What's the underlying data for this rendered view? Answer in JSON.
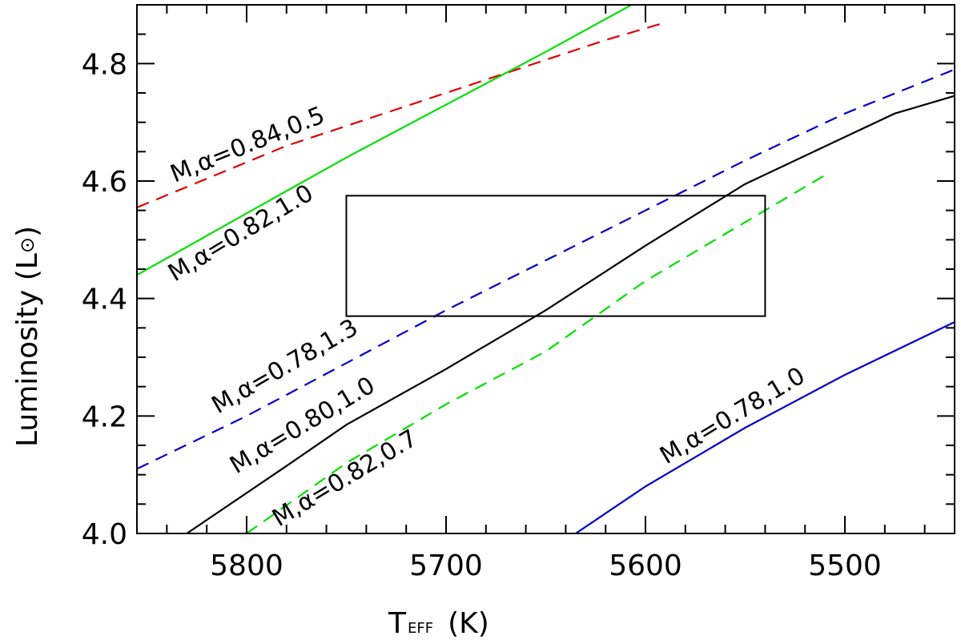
{
  "chart_data": {
    "type": "line",
    "xlabel": "T",
    "xlabel_sub": "EFF",
    "xlabel_unit": "(K)",
    "ylabel": "Luminosity (L",
    "ylabel_sun": "⊙",
    "ylabel_close": ")",
    "xlim": [
      5855,
      5445
    ],
    "ylim": [
      4.0,
      4.9
    ],
    "x_reversed": true,
    "xticks": [
      5800,
      5700,
      5600,
      5500
    ],
    "xtick_labels": [
      "5800",
      "5700",
      "5600",
      "5500"
    ],
    "yticks": [
      4.0,
      4.2,
      4.4,
      4.6,
      4.8
    ],
    "ytick_labels": [
      "4.0",
      "4.2",
      "4.4",
      "4.6",
      "4.8"
    ],
    "grid": false,
    "box": {
      "x": [
        5750,
        5540
      ],
      "y": [
        4.37,
        4.575
      ]
    },
    "series": [
      {
        "label": "M,α=0.84,0.5",
        "color": "#e00000",
        "dash": true,
        "x": [
          5855,
          5780,
          5700,
          5620,
          5590
        ],
        "y": [
          4.555,
          4.66,
          4.75,
          4.84,
          4.87
        ]
      },
      {
        "label": "M,α=0.82,1.0",
        "color": "#00e000",
        "dash": false,
        "x": [
          5855,
          5800,
          5750,
          5700,
          5650,
          5607
        ],
        "y": [
          4.44,
          4.545,
          4.64,
          4.73,
          4.82,
          4.9
        ]
      },
      {
        "label": "M,α=0.78,1.3",
        "color": "#0000cc",
        "dash": true,
        "x": [
          5855,
          5800,
          5750,
          5700,
          5650,
          5600,
          5550,
          5500,
          5445
        ],
        "y": [
          4.11,
          4.2,
          4.29,
          4.38,
          4.465,
          4.55,
          4.635,
          4.715,
          4.79
        ]
      },
      {
        "label": "M,α=0.80,1.0",
        "color": "#000000",
        "dash": false,
        "x": [
          5830,
          5780,
          5750,
          5700,
          5650,
          5600,
          5550,
          5500,
          5475,
          5445
        ],
        "y": [
          4.0,
          4.115,
          4.185,
          4.28,
          4.38,
          4.49,
          4.595,
          4.675,
          4.715,
          4.745
        ]
      },
      {
        "label": "M,α=0.82,0.7",
        "color": "#00e000",
        "dash": true,
        "x": [
          5800,
          5750,
          5700,
          5650,
          5600,
          5560,
          5510
        ],
        "y": [
          4.0,
          4.12,
          4.22,
          4.31,
          4.43,
          4.51,
          4.61
        ]
      },
      {
        "label": "M,α=0.78,1.0",
        "color": "#0000cc",
        "dash": false,
        "x": [
          5635,
          5600,
          5550,
          5500,
          5445
        ],
        "y": [
          4.0,
          4.08,
          4.18,
          4.27,
          4.36
        ]
      }
    ]
  }
}
